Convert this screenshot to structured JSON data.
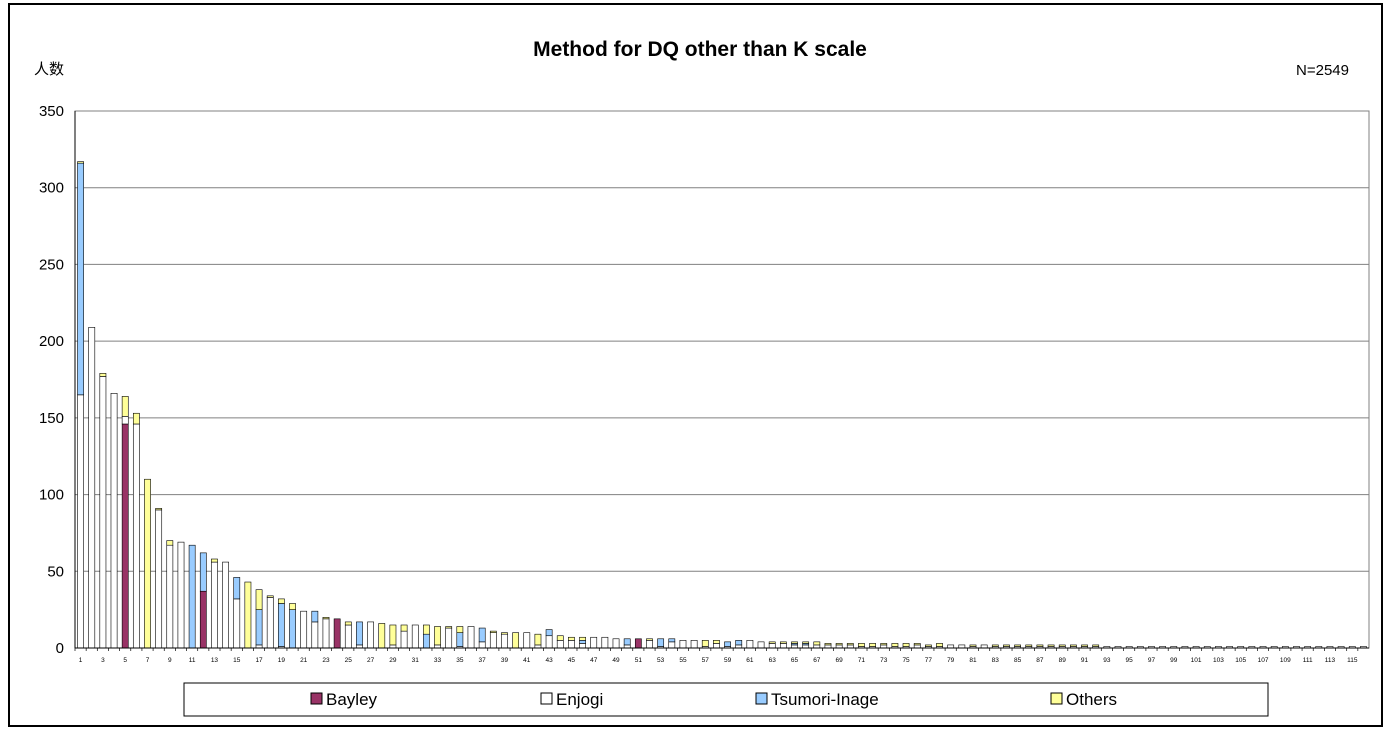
{
  "chart_data": {
    "type": "bar",
    "stacked": true,
    "title": "Method for DQ other than K scale",
    "ylabel": "人数",
    "annotation": "N=2549",
    "ylim": [
      0,
      350
    ],
    "yticks": [
      0,
      50,
      100,
      150,
      200,
      250,
      300,
      350
    ],
    "grid": true,
    "legend_position": "bottom",
    "categories": [
      1,
      2,
      3,
      4,
      5,
      6,
      7,
      8,
      9,
      10,
      11,
      12,
      13,
      14,
      15,
      16,
      17,
      18,
      19,
      20,
      21,
      22,
      23,
      24,
      25,
      26,
      27,
      28,
      29,
      30,
      31,
      32,
      33,
      34,
      35,
      36,
      37,
      38,
      39,
      40,
      41,
      42,
      43,
      44,
      45,
      46,
      47,
      48,
      49,
      50,
      51,
      52,
      53,
      54,
      55,
      56,
      57,
      58,
      59,
      60,
      61,
      62,
      63,
      64,
      65,
      66,
      67,
      68,
      69,
      70,
      71,
      72,
      73,
      74,
      75,
      76,
      77,
      78,
      79,
      80,
      81,
      82,
      83,
      84,
      85,
      86,
      87,
      88,
      89,
      90,
      91,
      92,
      93,
      94,
      95,
      96,
      97,
      98,
      99,
      100,
      101,
      102,
      103,
      104,
      105,
      106,
      107,
      108,
      109,
      110,
      111,
      112,
      113,
      114,
      115,
      116
    ],
    "xtick_labels": [
      "1",
      "3",
      "5",
      "7",
      "9",
      "11",
      "13",
      "15",
      "17",
      "19",
      "21",
      "23",
      "25",
      "27",
      "29",
      "31",
      "33",
      "35",
      "37",
      "39",
      "41",
      "43",
      "45",
      "47",
      "49",
      "51",
      "53",
      "55",
      "57",
      "59",
      "61",
      "63",
      "65",
      "67",
      "69",
      "71",
      "73",
      "75",
      "77",
      "79",
      "81",
      "83",
      "85",
      "87",
      "89",
      "91",
      "93",
      "95",
      "97",
      "99",
      "101",
      "103",
      "105",
      "107",
      "109",
      "111",
      "113",
      "115"
    ],
    "series": [
      {
        "name": "Bayley",
        "color": "#993366",
        "values": [
          0,
          0,
          0,
          0,
          146,
          0,
          0,
          0,
          0,
          0,
          0,
          37,
          0,
          0,
          0,
          0,
          0,
          0,
          0,
          0,
          0,
          0,
          0,
          19,
          0,
          0,
          0,
          0,
          0,
          0,
          0,
          0,
          0,
          0,
          0,
          0,
          0,
          0,
          0,
          0,
          0,
          0,
          0,
          0,
          0,
          0,
          0,
          0,
          0,
          0,
          6,
          0,
          0,
          0,
          0,
          0,
          0,
          0,
          0,
          0,
          0,
          0,
          0,
          0,
          0,
          0,
          0,
          0,
          0,
          0,
          0,
          0,
          0,
          0,
          0,
          0,
          0,
          0,
          0,
          0,
          0,
          0,
          0,
          0,
          0,
          0,
          0,
          0,
          0,
          0,
          0,
          0,
          0,
          0,
          0,
          0,
          0,
          0,
          0,
          0,
          0,
          0,
          0,
          0,
          0,
          0,
          0,
          0,
          0,
          0,
          0,
          0,
          0,
          0,
          0,
          0
        ]
      },
      {
        "name": "Enjogi",
        "color": "#ffffff",
        "values": [
          165,
          209,
          177,
          166,
          5,
          146,
          0,
          90,
          67,
          69,
          0,
          0,
          56,
          56,
          32,
          0,
          2,
          33,
          1,
          0,
          24,
          17,
          19,
          0,
          15,
          2,
          17,
          0,
          2,
          11,
          15,
          0,
          2,
          13,
          1,
          14,
          4,
          10,
          9,
          0,
          10,
          2,
          8,
          5,
          5,
          3,
          7,
          7,
          6,
          2,
          0,
          5,
          1,
          4,
          5,
          5,
          1,
          3,
          1,
          2,
          5,
          4,
          3,
          3,
          2,
          2,
          2,
          2,
          2,
          2,
          1,
          1,
          2,
          1,
          1,
          2,
          1,
          1,
          2,
          2,
          1,
          2,
          1,
          1,
          1,
          1,
          1,
          1,
          1,
          1,
          1,
          1,
          1,
          1,
          1,
          1,
          1,
          1,
          1,
          1,
          1,
          1,
          1,
          1,
          1,
          1,
          1,
          1,
          1,
          1,
          1,
          1,
          1,
          1,
          1,
          1
        ]
      },
      {
        "name": "Tsumori-Inage",
        "color": "#99ccff",
        "values": [
          151,
          0,
          0,
          0,
          0,
          0,
          0,
          0,
          0,
          0,
          67,
          25,
          0,
          0,
          14,
          0,
          23,
          0,
          28,
          25,
          0,
          7,
          0,
          0,
          0,
          15,
          0,
          0,
          0,
          0,
          0,
          9,
          0,
          0,
          9,
          0,
          9,
          0,
          0,
          0,
          0,
          0,
          4,
          0,
          0,
          2,
          0,
          0,
          0,
          4,
          0,
          0,
          5,
          2,
          0,
          0,
          0,
          0,
          3,
          3,
          0,
          0,
          0,
          0,
          1,
          1,
          0,
          0,
          0,
          0,
          0,
          0,
          0,
          0,
          0,
          0,
          0,
          0,
          0,
          0,
          0,
          0,
          0,
          0,
          0,
          0,
          0,
          0,
          0,
          0,
          0,
          0,
          0,
          0,
          0,
          0,
          0,
          0,
          0,
          0,
          0,
          0,
          0,
          0,
          0,
          0,
          0,
          0,
          0,
          0,
          0,
          0,
          0,
          0,
          0,
          0
        ]
      },
      {
        "name": "Others",
        "color": "#ffff99",
        "values": [
          1,
          0,
          2,
          0,
          13,
          7,
          110,
          1,
          3,
          0,
          0,
          0,
          2,
          0,
          0,
          43,
          13,
          1,
          3,
          4,
          0,
          0,
          1,
          0,
          2,
          0,
          0,
          16,
          13,
          4,
          0,
          6,
          12,
          1,
          4,
          0,
          0,
          1,
          1,
          10,
          0,
          7,
          0,
          3,
          2,
          2,
          0,
          0,
          0,
          0,
          0,
          1,
          0,
          0,
          0,
          0,
          4,
          2,
          0,
          0,
          0,
          0,
          1,
          1,
          1,
          1,
          2,
          1,
          1,
          1,
          2,
          2,
          1,
          2,
          2,
          1,
          1,
          2,
          0,
          0,
          1,
          0,
          1,
          1,
          1,
          1,
          1,
          1,
          1,
          1,
          1,
          1,
          0,
          0,
          0,
          0,
          0,
          0,
          0,
          0,
          0,
          0,
          0,
          0,
          0,
          0,
          0,
          0,
          0,
          0,
          0,
          0,
          0,
          0,
          0,
          0
        ]
      }
    ]
  },
  "legend": {
    "items": [
      {
        "marker": "■",
        "label": "Bayley"
      },
      {
        "marker": "□",
        "label": "Enjogi"
      },
      {
        "marker": "■",
        "label": "Tsumori-Inage"
      },
      {
        "marker": "■",
        "label": "Others"
      }
    ]
  }
}
